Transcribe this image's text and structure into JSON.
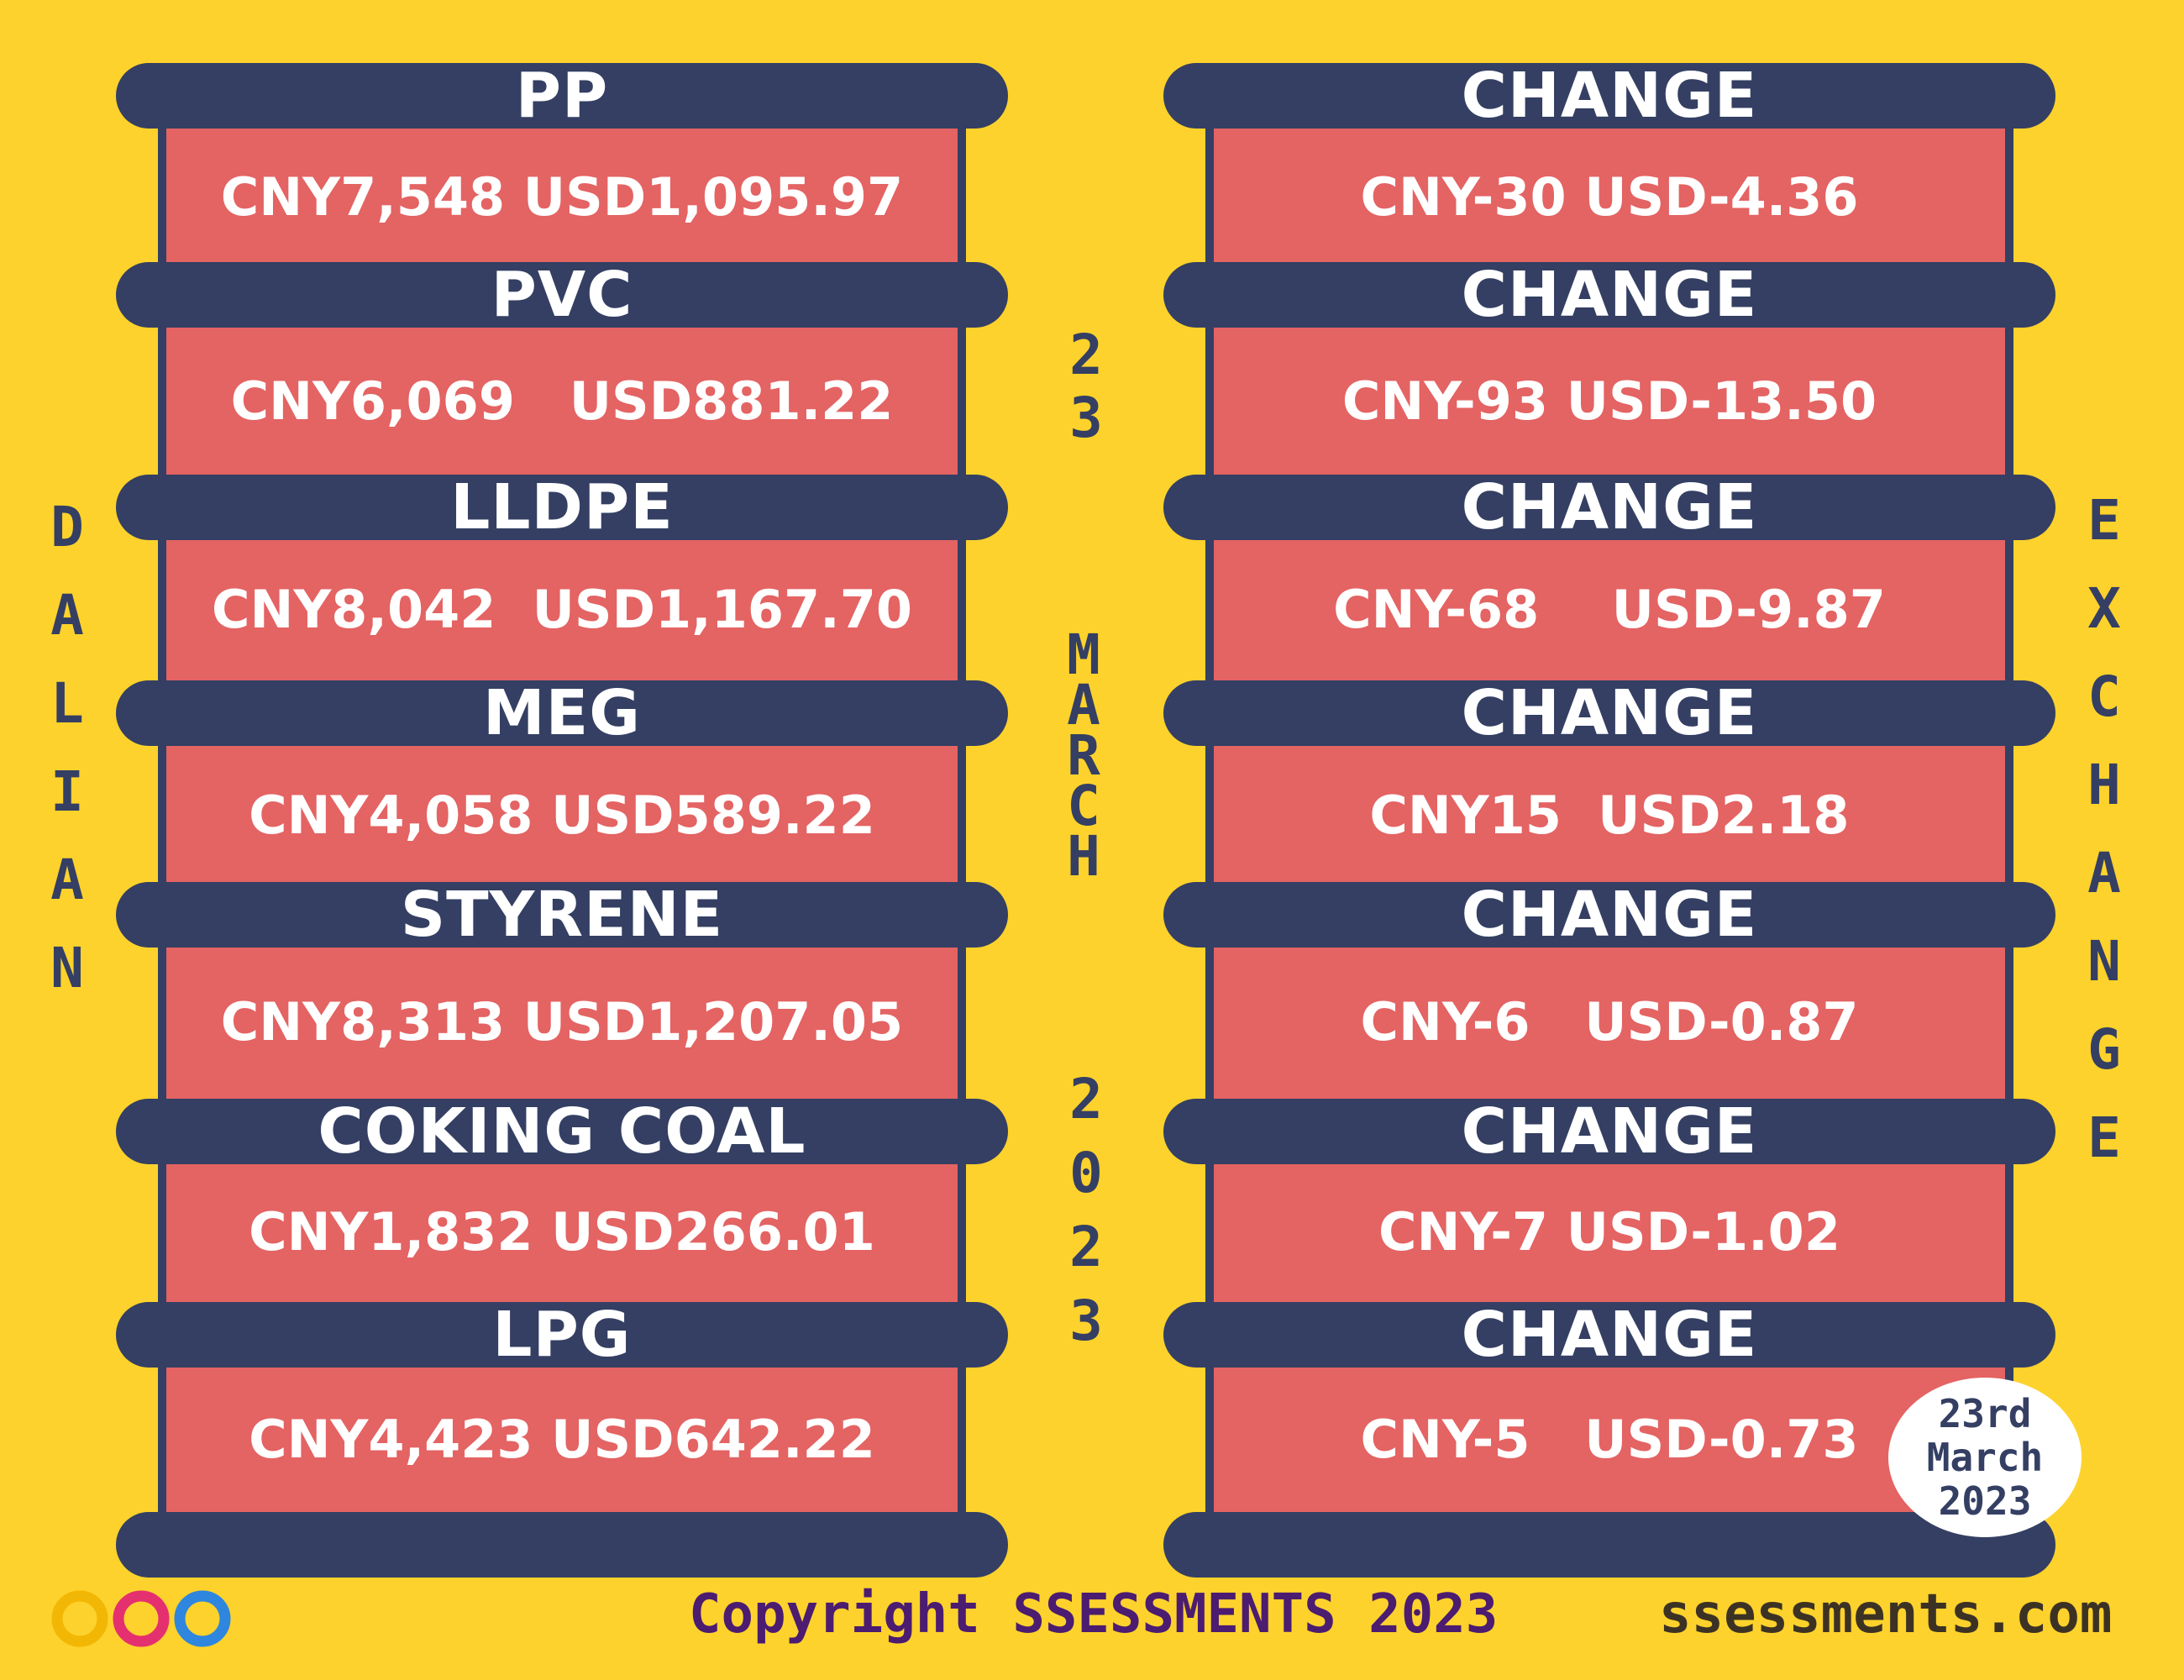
{
  "left_items": [
    {
      "name": "PP",
      "value": "CNY7,548 USD1,095.97"
    },
    {
      "name": "PVC",
      "value": "CNY6,069   USD881.22"
    },
    {
      "name": "LLDPE",
      "value": "CNY8,042  USD1,167.70"
    },
    {
      "name": "MEG",
      "value": "CNY4,058 USD589.22"
    },
    {
      "name": "STYRENE",
      "value": "CNY8,313 USD1,207.05"
    },
    {
      "name": "COKING COAL",
      "value": "CNY1,832 USD266.01"
    },
    {
      "name": "LPG",
      "value": "CNY4,423 USD642.22"
    }
  ],
  "right_items": [
    {
      "name": "CHANGE",
      "value": "CNY-30 USD-4.36"
    },
    {
      "name": "CHANGE",
      "value": "CNY-93 USD-13.50"
    },
    {
      "name": "CHANGE",
      "value": "CNY-68    USD-9.87"
    },
    {
      "name": "CHANGE",
      "value": "CNY15  USD2.18"
    },
    {
      "name": "CHANGE",
      "value": "CNY-6   USD-0.87"
    },
    {
      "name": "CHANGE",
      "value": "CNY-7 USD-1.02"
    },
    {
      "name": "CHANGE",
      "value": "CNY-5   USD-0.73"
    }
  ],
  "vertical_left": "DALIAN",
  "vertical_right": "EXCHANGE",
  "vertical_center_day": "23",
  "vertical_center_month": "MARCH",
  "vertical_center_year": "2023",
  "badge": {
    "line1": "23rd",
    "line2": "March",
    "line3": "2023"
  },
  "footer": {
    "copyright": "Copyright SSESSMENTS 2023",
    "site": "ssessments.com"
  },
  "colors": {
    "background": "#FDD22C",
    "bar": "#343F63",
    "panel": "#E46363",
    "copyright_text": "#4B1C70",
    "site_text": "#3C3224",
    "logo": [
      "#F2B705",
      "#E5306F",
      "#7B3FA0",
      "#2E86DE"
    ]
  }
}
